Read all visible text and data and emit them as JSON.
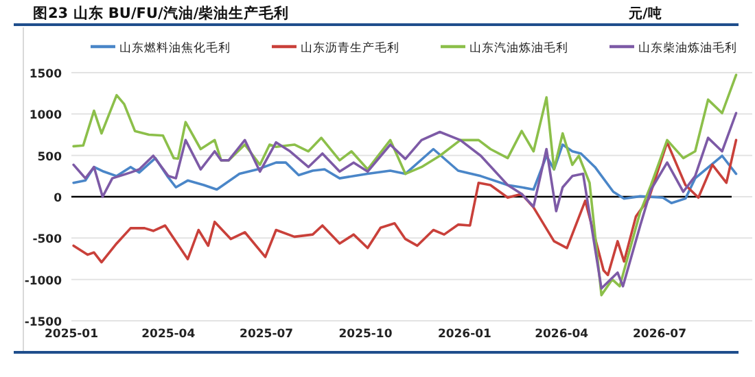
{
  "chart_data": {
    "type": "line",
    "title": "图23  山东 BU/FU/汽油/柴油生产毛利",
    "ylabel": "元/吨",
    "xlim": [
      "2025-01-01",
      "2026-09-25"
    ],
    "xticks": [
      "2025-01",
      "2025-04",
      "2025-07",
      "2025-10",
      "2026-01",
      "2026-04",
      "2026-07"
    ],
    "ylim": [
      -1500,
      1500
    ],
    "yticks": [
      -1500,
      -1000,
      -500,
      0,
      500,
      1000,
      1500
    ],
    "grid": "y",
    "legend": "top",
    "series": [
      {
        "name": "山东燃料油焦化毛利",
        "color": "#4a86c8",
        "x": [
          "2025-01-03",
          "2025-01-14",
          "2025-01-22",
          "2025-01-31",
          "2025-02-12",
          "2025-02-25",
          "2025-03-05",
          "2025-03-20",
          "2025-03-31",
          "2025-04-08",
          "2025-04-19",
          "2025-05-04",
          "2025-05-16",
          "2025-06-06",
          "2025-06-23",
          "2025-07-10",
          "2025-07-19",
          "2025-07-31",
          "2025-08-13",
          "2025-08-24",
          "2025-09-07",
          "2025-10-03",
          "2025-10-24",
          "2025-11-07",
          "2025-12-03",
          "2025-12-26",
          "2026-01-16",
          "2026-02-10",
          "2026-02-23",
          "2026-03-06",
          "2026-03-18",
          "2026-03-25",
          "2026-04-02",
          "2026-04-11",
          "2026-04-19",
          "2026-05-02",
          "2026-05-19",
          "2026-05-29",
          "2026-06-13",
          "2026-07-04",
          "2026-07-12",
          "2026-07-25",
          "2026-08-03",
          "2026-08-28",
          "2026-09-10"
        ],
        "values": [
          168,
          196,
          359,
          304,
          250,
          359,
          293,
          467,
          250,
          114,
          196,
          141,
          87,
          277,
          331,
          413,
          413,
          261,
          315,
          331,
          223,
          277,
          315,
          277,
          576,
          315,
          250,
          141,
          114,
          87,
          495,
          331,
          630,
          549,
          522,
          359,
          60,
          -22,
          5,
          -11,
          -76,
          -22,
          223,
          495,
          277
        ]
      },
      {
        "name": "山东沥青生产毛利",
        "color": "#c9403a",
        "x": [
          "2025-01-03",
          "2025-01-16",
          "2025-01-22",
          "2025-01-29",
          "2025-02-12",
          "2025-02-25",
          "2025-03-10",
          "2025-03-18",
          "2025-03-29",
          "2025-04-19",
          "2025-04-29",
          "2025-05-08",
          "2025-05-14",
          "2025-05-29",
          "2025-06-11",
          "2025-06-30",
          "2025-07-10",
          "2025-07-27",
          "2025-08-13",
          "2025-08-22",
          "2025-09-07",
          "2025-09-20",
          "2025-10-03",
          "2025-10-15",
          "2025-10-28",
          "2025-11-07",
          "2025-11-18",
          "2025-12-03",
          "2025-12-13",
          "2025-12-26",
          "2026-01-06",
          "2026-01-14",
          "2026-01-25",
          "2026-02-10",
          "2026-02-23",
          "2026-03-06",
          "2026-03-25",
          "2026-04-06",
          "2026-04-23",
          "2026-05-10",
          "2026-05-14",
          "2026-05-23",
          "2026-05-29",
          "2026-06-09",
          "2026-06-21",
          "2026-07-08",
          "2026-07-25",
          "2026-08-06",
          "2026-08-19",
          "2026-09-01",
          "2026-09-10"
        ],
        "values": [
          -592,
          -701,
          -674,
          -793,
          -565,
          -380,
          -380,
          -413,
          -348,
          -755,
          -402,
          -592,
          -304,
          -511,
          -429,
          -728,
          -402,
          -484,
          -457,
          -348,
          -565,
          -457,
          -620,
          -375,
          -321,
          -511,
          -592,
          -402,
          -457,
          -337,
          -348,
          168,
          141,
          -11,
          33,
          -130,
          -538,
          -620,
          -49,
          -891,
          -946,
          -538,
          -783,
          -239,
          -22,
          658,
          141,
          -11,
          386,
          168,
          685
        ]
      },
      {
        "name": "山东汽油炼油毛利",
        "color": "#8cbf4a",
        "x": [
          "2025-01-03",
          "2025-01-12",
          "2025-01-22",
          "2025-01-29",
          "2025-02-12",
          "2025-02-19",
          "2025-03-01",
          "2025-03-14",
          "2025-03-27",
          "2025-04-06",
          "2025-04-10",
          "2025-04-17",
          "2025-05-01",
          "2025-05-14",
          "2025-05-20",
          "2025-05-27",
          "2025-06-11",
          "2025-06-25",
          "2025-07-04",
          "2025-07-10",
          "2025-07-27",
          "2025-08-09",
          "2025-08-21",
          "2025-09-07",
          "2025-09-18",
          "2025-10-03",
          "2025-10-24",
          "2025-11-07",
          "2025-11-22",
          "2025-12-09",
          "2025-12-28",
          "2026-01-14",
          "2026-01-25",
          "2026-02-10",
          "2026-02-23",
          "2026-03-06",
          "2026-03-18",
          "2026-03-25",
          "2026-04-02",
          "2026-04-11",
          "2026-04-17",
          "2026-04-27",
          "2026-05-08",
          "2026-05-18",
          "2026-05-25",
          "2026-06-13",
          "2026-06-23",
          "2026-07-08",
          "2026-07-23",
          "2026-08-03",
          "2026-08-15",
          "2026-08-28",
          "2026-09-10"
        ],
        "values": [
          610,
          620,
          1040,
          766,
          1228,
          1120,
          794,
          750,
          740,
          467,
          460,
          902,
          576,
          685,
          440,
          440,
          630,
          386,
          630,
          603,
          630,
          549,
          712,
          440,
          549,
          331,
          685,
          277,
          359,
          495,
          685,
          685,
          576,
          467,
          794,
          549,
          1201,
          331,
          766,
          386,
          495,
          168,
          -1190,
          -1000,
          -1082,
          -185,
          141,
          685,
          467,
          549,
          1174,
          1011,
          1473
        ]
      },
      {
        "name": "山东柴油炼油毛利",
        "color": "#7d5aa6",
        "x": [
          "2025-01-03",
          "2025-01-14",
          "2025-01-22",
          "2025-01-30",
          "2025-02-08",
          "2025-02-25",
          "2025-03-05",
          "2025-03-18",
          "2025-04-01",
          "2025-04-08",
          "2025-04-17",
          "2025-05-01",
          "2025-05-14",
          "2025-05-20",
          "2025-05-27",
          "2025-06-11",
          "2025-06-25",
          "2025-07-10",
          "2025-07-23",
          "2025-08-09",
          "2025-08-22",
          "2025-09-07",
          "2025-09-20",
          "2025-10-03",
          "2025-10-24",
          "2025-11-07",
          "2025-11-22",
          "2025-12-09",
          "2025-12-28",
          "2026-01-16",
          "2026-02-10",
          "2026-02-23",
          "2026-03-06",
          "2026-03-18",
          "2026-03-27",
          "2026-04-02",
          "2026-04-11",
          "2026-04-21",
          "2026-05-08",
          "2026-05-23",
          "2026-05-28",
          "2026-06-13",
          "2026-06-23",
          "2026-07-08",
          "2026-07-23",
          "2026-08-03",
          "2026-08-15",
          "2026-08-28",
          "2026-09-10"
        ],
        "values": [
          386,
          223,
          359,
          0,
          223,
          293,
          331,
          495,
          250,
          223,
          685,
          331,
          549,
          440,
          440,
          685,
          304,
          657,
          549,
          359,
          522,
          304,
          413,
          304,
          630,
          457,
          685,
          783,
          685,
          495,
          141,
          33,
          -120,
          576,
          -174,
          114,
          250,
          277,
          -1109,
          -918,
          -1082,
          -348,
          87,
          413,
          60,
          250,
          712,
          549,
          1011
        ]
      }
    ]
  }
}
